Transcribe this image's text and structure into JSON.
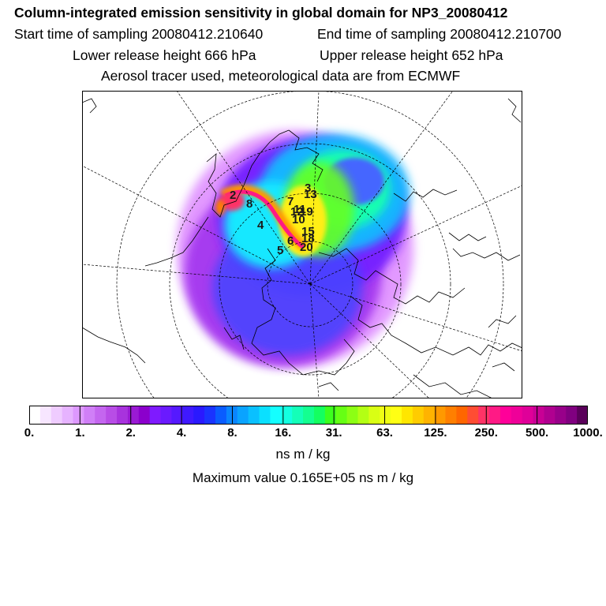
{
  "header": {
    "title": "Column-integrated emission sensitivity in global domain for NP3_20080412",
    "start_time": "Start time of sampling 20080412.210640",
    "end_time": "End time of sampling 20080412.210700",
    "lower_height": "Lower release height  666 hPa",
    "upper_height": "Upper release height  652 hPa",
    "info": "Aerosol tracer used, meteorological data are from ECMWF"
  },
  "map": {
    "labels": [
      "3",
      "2",
      "8",
      "7",
      "12",
      "19",
      "10",
      "4",
      "15",
      "6",
      "20",
      "5",
      "18",
      "11",
      "13"
    ]
  },
  "colorbar": {
    "ticks": [
      "0.",
      "1.",
      "2.",
      "4.",
      "8.",
      "16.",
      "31.",
      "63.",
      "125.",
      "250.",
      "500.",
      "1000."
    ],
    "colors": [
      "#ffffff",
      "#f7e6ff",
      "#efccff",
      "#e6b3ff",
      "#dd99ff",
      "#d07ff7",
      "#c466ef",
      "#b84de6",
      "#a833dd",
      "#9a1ad4",
      "#8b00cc",
      "#7f1aff",
      "#6a1aff",
      "#5519ff",
      "#3f19ff",
      "#2a19ff",
      "#1a33ff",
      "#0a5cff",
      "#0a85ff",
      "#0aa3ff",
      "#0ac0ff",
      "#0ae0ff",
      "#14ffff",
      "#14ffe0",
      "#14ffb8",
      "#14ff90",
      "#14ff60",
      "#3cff1e",
      "#66ff14",
      "#8cff14",
      "#b3ff14",
      "#d9ff14",
      "#f0ff14",
      "#ffff14",
      "#ffe600",
      "#ffcc00",
      "#ffb300",
      "#ff9900",
      "#ff7f00",
      "#ff6600",
      "#ff4d33",
      "#ff3366",
      "#ff1a85",
      "#ff0099",
      "#ef0099",
      "#df0099",
      "#c80095",
      "#b00090",
      "#98008a",
      "#800080",
      "#5a005a"
    ],
    "units": "ns m / kg",
    "max_value": "Maximum value  0.165E+05 ns m / kg"
  }
}
